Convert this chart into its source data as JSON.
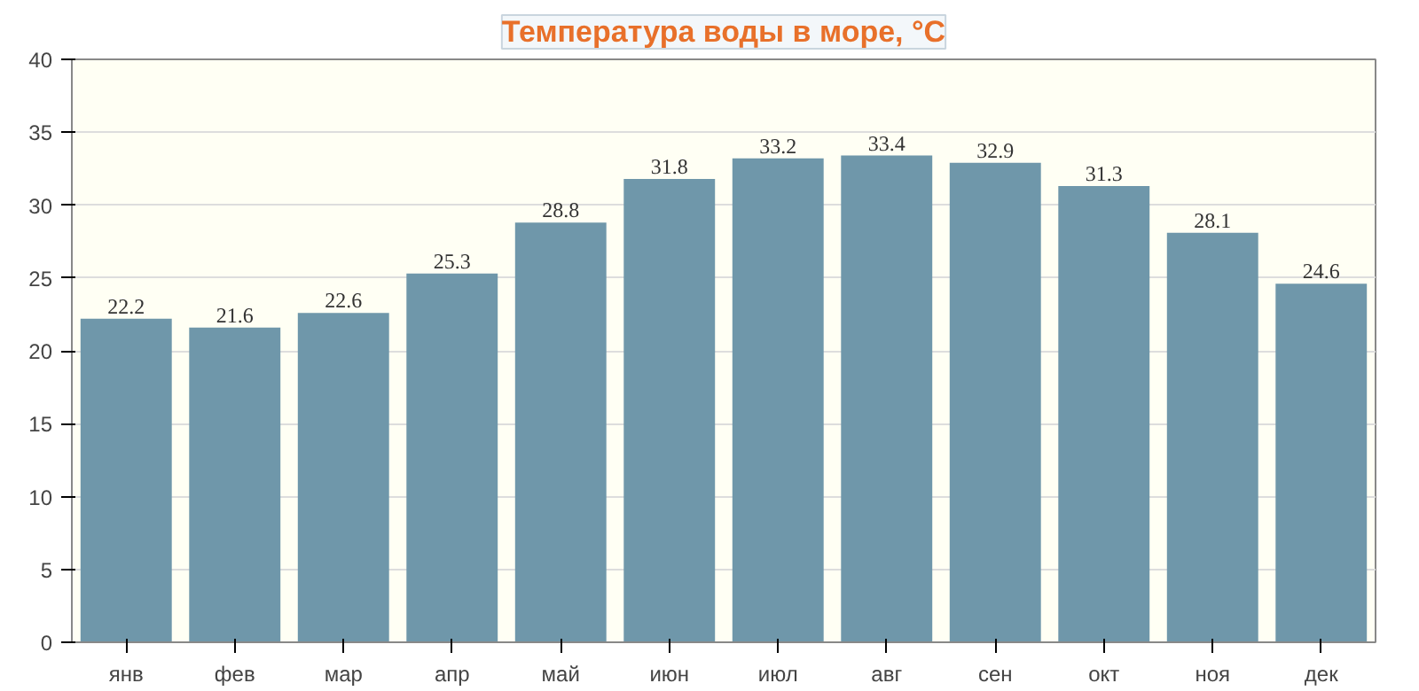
{
  "chart_data": {
    "type": "bar",
    "title": "Температура воды в море, °C",
    "categories": [
      "янв",
      "фев",
      "мар",
      "апр",
      "май",
      "июн",
      "июл",
      "авг",
      "сен",
      "окт",
      "ноя",
      "дек"
    ],
    "values": [
      22.2,
      21.6,
      22.6,
      25.3,
      28.8,
      31.8,
      33.2,
      33.4,
      32.9,
      31.3,
      28.1,
      24.6
    ],
    "color": "#6f97aa",
    "ylim": [
      0,
      40
    ],
    "yticks": [
      0,
      5,
      10,
      15,
      20,
      25,
      30,
      35,
      40
    ],
    "grid": "y",
    "data_labels": true
  }
}
